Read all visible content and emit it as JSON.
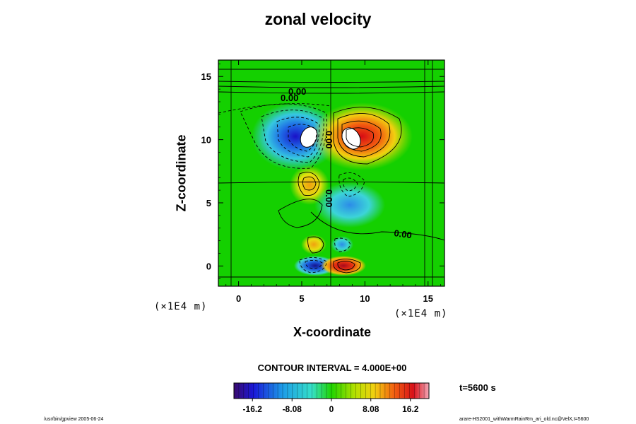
{
  "chart_data": {
    "type": "heatmap",
    "title": "zonal velocity",
    "xlabel": "X-coordinate",
    "ylabel": "Z-coordinate",
    "x_unit": "(×1E4 m)",
    "y_unit": "(×1E4 m)",
    "x_ticks": [
      0,
      5,
      10,
      15
    ],
    "y_ticks": [
      0,
      5,
      10,
      15
    ],
    "xlim": [
      -1.6,
      16.3
    ],
    "ylim": [
      -1.6,
      16.3
    ],
    "contour_label": "0.00",
    "contour_interval_text": "CONTOUR INTERVAL = 4.000E+00",
    "colorbar_ticks": [
      "-16.2",
      "-8.08",
      "0",
      "8.08",
      "16.2"
    ],
    "colorbar_range": [
      -20,
      20
    ],
    "features": [
      {
        "x": 5.8,
        "z": 10.1,
        "value": -22,
        "kind": "negative core"
      },
      {
        "x": 8.6,
        "z": 10.1,
        "value": 22,
        "kind": "positive core"
      },
      {
        "x": 5.6,
        "z": 6.8,
        "value": 7,
        "kind": "positive"
      },
      {
        "x": 8.4,
        "z": 6.6,
        "value": -6,
        "kind": "negative"
      },
      {
        "x": 6.2,
        "z": 0.0,
        "value": -18,
        "kind": "negative"
      },
      {
        "x": 8.2,
        "z": 0.0,
        "value": 18,
        "kind": "positive"
      },
      {
        "x": 6.0,
        "z": 1.7,
        "value": 4,
        "kind": "positive"
      },
      {
        "x": 8.4,
        "z": 1.7,
        "value": -3,
        "kind": "negative"
      }
    ]
  },
  "time_label": "t=5600 s",
  "footer_left": "/usr/bin/gpview 2005-06-24",
  "footer_right": "arare-HS2001_withWarmRainRm_ari_old.nc@VelX,t=5600",
  "colors": {
    "background_field": "#14d000",
    "contour": "#000000"
  }
}
